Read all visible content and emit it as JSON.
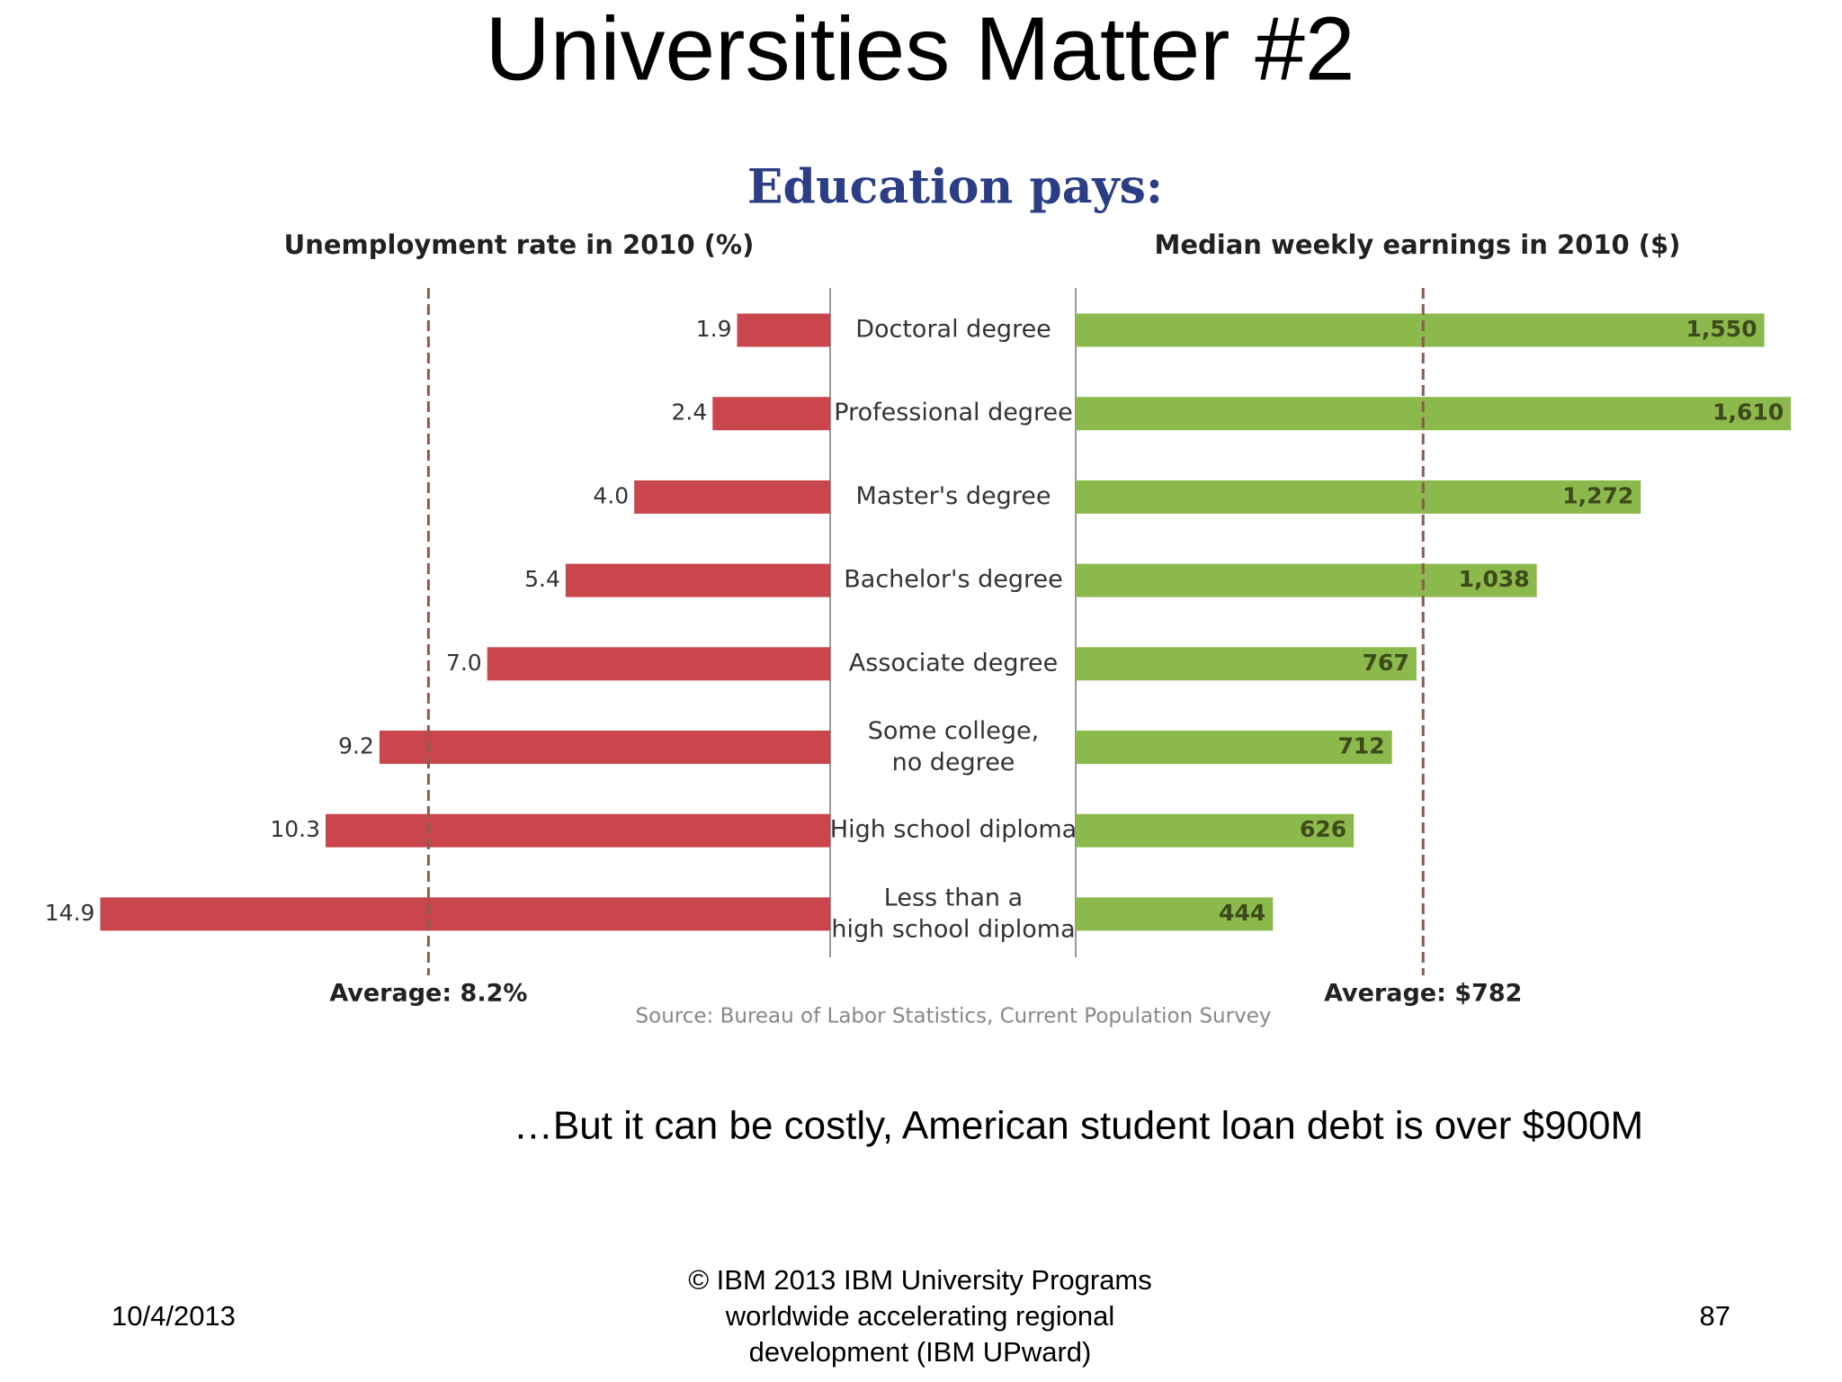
{
  "slide": {
    "title": "Universities Matter #2",
    "note": "…But it can be costly, American student loan debt is over $900M",
    "footer": {
      "date": "10/4/2013",
      "copyright": "© IBM 2013 IBM University Programs\nworldwide accelerating regional\ndevelopment (IBM UPward)",
      "page": "87"
    }
  },
  "chart_data": {
    "type": "bar",
    "title": "Education pays:",
    "source": "Source: Bureau of Labor Statistics, Current Population Survey",
    "categories": [
      "Doctoral degree",
      "Professional degree",
      "Master's degree",
      "Bachelor's degree",
      "Associate degree",
      "Some college,\nno degree",
      "High school diploma",
      "Less than a\nhigh school diploma"
    ],
    "series": [
      {
        "name": "Unemployment rate in 2010 (%)",
        "color": "#c9474c",
        "side": "left",
        "values": [
          1.9,
          2.4,
          4.0,
          5.4,
          7.0,
          9.2,
          10.3,
          14.9
        ],
        "value_labels": [
          "1.9",
          "2.4",
          "4.0",
          "5.4",
          "7.0",
          "9.2",
          "10.3",
          "14.9"
        ],
        "xlim": [
          0,
          15
        ],
        "average": {
          "value": 8.2,
          "label": "Average: 8.2%"
        }
      },
      {
        "name": "Median weekly earnings in 2010 ($)",
        "color": "#8cb94b",
        "side": "right",
        "values": [
          1550,
          1610,
          1272,
          1038,
          767,
          712,
          626,
          444
        ],
        "value_labels": [
          "1,550",
          "1,610",
          "1,272",
          "1,038",
          "767",
          "712",
          "626",
          "444"
        ],
        "xlim": [
          0,
          1650
        ],
        "average": {
          "value": 782,
          "label": "Average: $782"
        }
      }
    ]
  }
}
